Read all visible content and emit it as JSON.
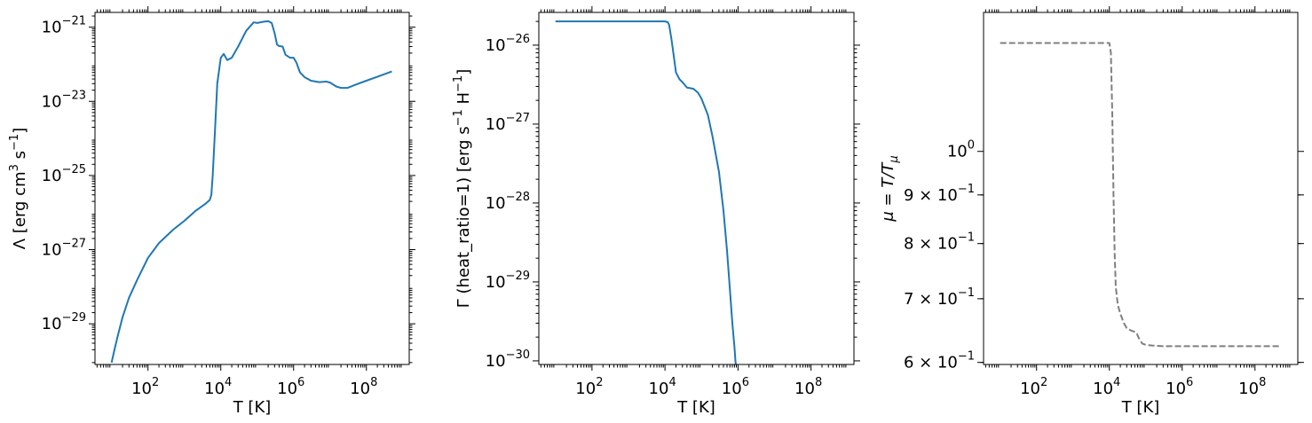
{
  "chart_data": [
    {
      "type": "line",
      "panel": "cooling",
      "xlabel": "T [K]",
      "ylabel_parts": [
        "Λ [erg cm",
        "3",
        " s",
        "−1",
        "]"
      ],
      "xscale": "log",
      "yscale": "log",
      "xlim": [
        3.5,
        1500000000.0
      ],
      "ylim": [
        8e-31,
        2.5e-21
      ],
      "xticks": [
        {
          "base": "10",
          "exp": "2",
          "v": 100
        },
        {
          "base": "10",
          "exp": "4",
          "v": 10000
        },
        {
          "base": "10",
          "exp": "6",
          "v": 1000000
        },
        {
          "base": "10",
          "exp": "8",
          "v": 100000000
        }
      ],
      "yticks": [
        {
          "base": "10",
          "exp": "−29",
          "v": 1e-29
        },
        {
          "base": "10",
          "exp": "−27",
          "v": 1e-27
        },
        {
          "base": "10",
          "exp": "−25",
          "v": 1e-25
        },
        {
          "base": "10",
          "exp": "−23",
          "v": 1e-23
        },
        {
          "base": "10",
          "exp": "−21",
          "v": 1e-21
        }
      ],
      "grid": false,
      "series": [
        {
          "color": "#1f77b4",
          "dash": "solid",
          "x": [
            10,
            12,
            15,
            20,
            30,
            50,
            100,
            200,
            500,
            1000,
            2000,
            4000,
            5000,
            5500,
            6000,
            7000,
            8000,
            10000,
            12000,
            15000,
            20000,
            30000,
            50000,
            80000,
            100000,
            150000,
            200000,
            250000,
            300000,
            350000,
            400000,
            500000,
            600000,
            800000,
            1000000,
            1200000,
            1500000,
            2000000,
            3000000,
            5000000,
            8000000,
            10000000,
            15000000,
            20000000,
            30000000,
            50000000,
            100000000,
            200000000,
            500000000
          ],
          "y": [
            9e-31,
            2e-30,
            5e-30,
            1.5e-29,
            5e-29,
            1.5e-28,
            6e-28,
            1.5e-27,
            3.5e-27,
            6e-27,
            1.1e-26,
            1.8e-26,
            2.2e-26,
            3e-26,
            1e-25,
            2e-24,
            3e-23,
            1.5e-22,
            1.9e-22,
            1.3e-22,
            1.5e-22,
            3e-22,
            8e-22,
            1.35e-21,
            1.3e-21,
            1.4e-21,
            1.45e-21,
            1.3e-21,
            7e-22,
            3.4e-22,
            3.1e-22,
            3e-22,
            1.8e-22,
            1.5e-22,
            1.5e-22,
            1.1e-22,
            6e-23,
            4.5e-23,
            3.6e-23,
            3.3e-23,
            3.4e-23,
            3.2e-23,
            2.5e-23,
            2.3e-23,
            2.3e-23,
            2.8e-23,
            3.6e-23,
            4.6e-23,
            6.4e-23
          ]
        }
      ]
    },
    {
      "type": "line",
      "panel": "heating",
      "xlabel": "T [K]",
      "ylabel_parts": [
        "Γ (heat_ratio=1) [erg s",
        "−1",
        " H",
        "−1",
        "]"
      ],
      "xscale": "log",
      "yscale": "log",
      "xlim": [
        3.5,
        1500000000.0
      ],
      "ylim": [
        9e-31,
        2.6e-26
      ],
      "xticks": [
        {
          "base": "10",
          "exp": "2",
          "v": 100
        },
        {
          "base": "10",
          "exp": "4",
          "v": 10000
        },
        {
          "base": "10",
          "exp": "6",
          "v": 1000000
        },
        {
          "base": "10",
          "exp": "8",
          "v": 100000000
        }
      ],
      "yticks": [
        {
          "base": "10",
          "exp": "−30",
          "v": 1e-30
        },
        {
          "base": "10",
          "exp": "−29",
          "v": 1e-29
        },
        {
          "base": "10",
          "exp": "−28",
          "v": 1e-28
        },
        {
          "base": "10",
          "exp": "−27",
          "v": 1e-27
        },
        {
          "base": "10",
          "exp": "−26",
          "v": 1e-26
        }
      ],
      "grid": false,
      "series": [
        {
          "color": "#1f77b4",
          "dash": "solid",
          "x": [
            10,
            100,
            1000,
            10000,
            12000,
            13000,
            15000,
            18000,
            20000,
            25000,
            30000,
            40000,
            60000,
            80000,
            100000,
            150000,
            200000,
            300000,
            400000,
            500000,
            600000,
            700000,
            800000,
            850000,
            870000
          ],
          "y": [
            2e-26,
            2e-26,
            2e-26,
            2e-26,
            1.95e-26,
            1.8e-26,
            1.2e-26,
            6.5e-27,
            4.5e-27,
            3.7e-27,
            3.4e-27,
            2.9e-27,
            2.8e-27,
            2.5e-27,
            2.1e-27,
            1.3e-27,
            7e-28,
            2.5e-28,
            8e-29,
            2.5e-29,
            8e-30,
            3e-30,
            1.5e-30,
            1e-30,
            9e-31
          ]
        }
      ]
    },
    {
      "type": "line",
      "panel": "mu",
      "xlabel": "T [K]",
      "ylabel_parts": [
        "μ = T/T",
        "μ"
      ],
      "xscale": "log",
      "yscale": "log",
      "xlim": [
        3.5,
        1500000000.0
      ],
      "ylim": [
        0.597,
        1.4
      ],
      "xticks": [
        {
          "base": "10",
          "exp": "2",
          "v": 100
        },
        {
          "base": "10",
          "exp": "4",
          "v": 10000
        },
        {
          "base": "10",
          "exp": "6",
          "v": 1000000
        },
        {
          "base": "10",
          "exp": "8",
          "v": 100000000
        }
      ],
      "yticks": [
        {
          "base": "6 × 10",
          "exp": "−1",
          "v": 0.6
        },
        {
          "base": "7 × 10",
          "exp": "−1",
          "v": 0.7
        },
        {
          "base": "8 × 10",
          "exp": "−1",
          "v": 0.8
        },
        {
          "base": "9 × 10",
          "exp": "−1",
          "v": 0.9
        },
        {
          "base": "10",
          "exp": "0",
          "v": 1.0
        }
      ],
      "grid": false,
      "series": [
        {
          "color": "#7f7f7f",
          "dash": "dashed",
          "x": [
            10,
            100,
            1000,
            10000,
            11000,
            12000,
            13000,
            14000,
            15000,
            17000,
            20000,
            25000,
            30000,
            40000,
            55000,
            65000,
            80000,
            100000,
            150000,
            300000,
            1000000,
            10000000,
            100000000,
            500000000
          ],
          "y": [
            1.3,
            1.3,
            1.3,
            1.3,
            1.27,
            1.1,
            0.9,
            0.78,
            0.72,
            0.69,
            0.675,
            0.66,
            0.652,
            0.648,
            0.645,
            0.636,
            0.628,
            0.626,
            0.625,
            0.624,
            0.624,
            0.624,
            0.624,
            0.624
          ]
        }
      ]
    }
  ]
}
